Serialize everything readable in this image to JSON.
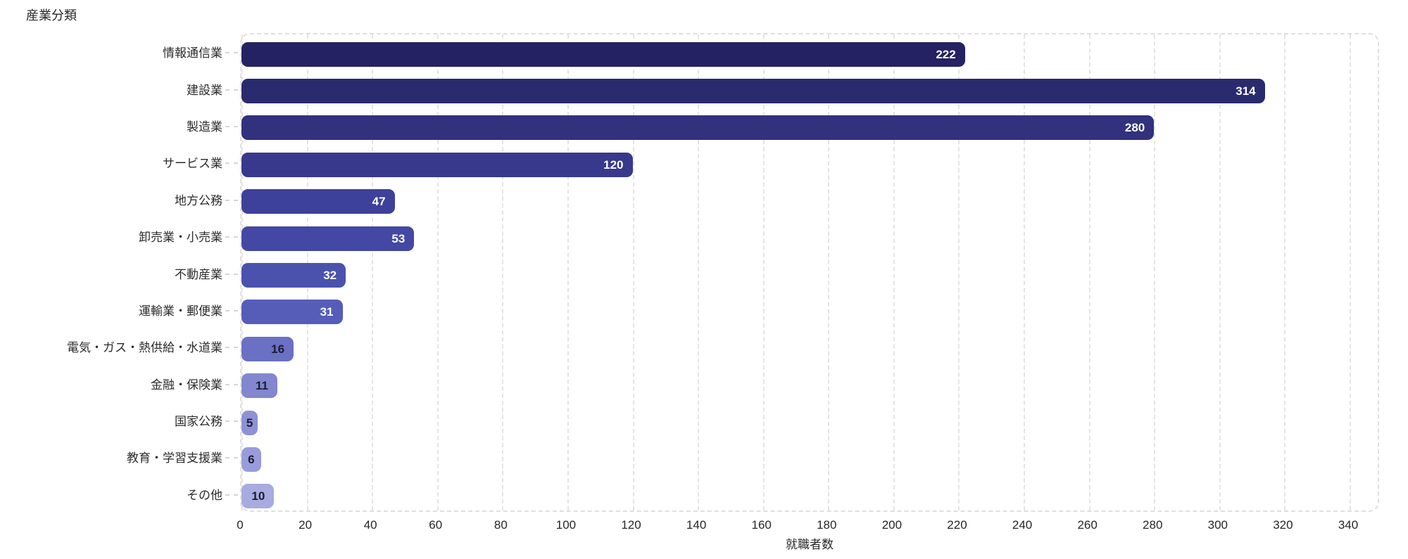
{
  "chart_data": {
    "type": "bar",
    "orientation": "horizontal",
    "title": "産業分類",
    "xlabel": "就職者数",
    "categories": [
      "情報通信業",
      "建設業",
      "製造業",
      "サービス業",
      "地方公務",
      "卸売業・小売業",
      "不動産業",
      "運輸業・郵便業",
      "電気・ガス・熱供給・水道業",
      "金融・保険業",
      "国家公務",
      "教育・学習支援業",
      "その他"
    ],
    "values": [
      222,
      314,
      280,
      120,
      47,
      53,
      32,
      31,
      16,
      11,
      5,
      6,
      10
    ],
    "bar_colors": [
      "#242263",
      "#2a2a6f",
      "#31317e",
      "#38398c",
      "#3e4199",
      "#4348a4",
      "#4a52ae",
      "#555db8",
      "#6a70c3",
      "#8287cf",
      "#8e92d5",
      "#989cda",
      "#a8abdf"
    ],
    "value_label_colors": [
      "#ffffff",
      "#ffffff",
      "#ffffff",
      "#ffffff",
      "#ffffff",
      "#ffffff",
      "#ffffff",
      "#ffffff",
      "#1c1c30",
      "#1c1c30",
      "#1c1c30",
      "#1c1c30",
      "#1c1c30"
    ],
    "xticks": [
      0,
      20,
      40,
      60,
      80,
      100,
      120,
      140,
      160,
      180,
      200,
      220,
      240,
      260,
      280,
      300,
      320,
      340
    ],
    "xlim": [
      0,
      340
    ],
    "grid": "dashed-vertical",
    "legend": "none",
    "colors": {
      "grid": "#e4e4e4",
      "border": "#dfdfdf",
      "axis_text": "#262626",
      "label_dash": "#d6d6d6"
    }
  }
}
